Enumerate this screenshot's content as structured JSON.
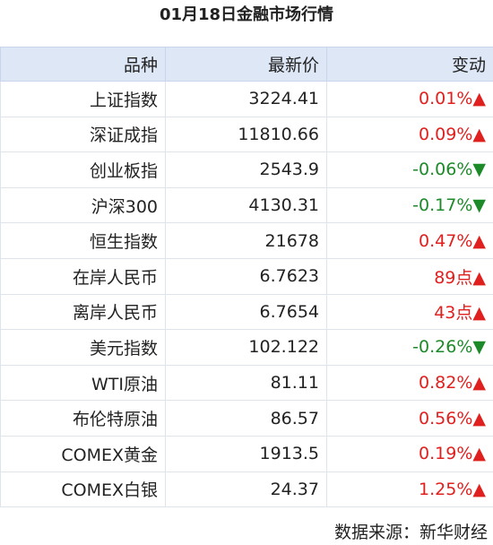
{
  "header": {
    "title": "01月18日金融市场行情"
  },
  "table": {
    "columns": [
      "品种",
      "最新价",
      "变动"
    ],
    "rows": [
      [
        "上证指数",
        "3224.41",
        "0.01%▲"
      ],
      [
        "深证成指",
        "11810.66",
        "0.09%▲"
      ],
      [
        "创业板指",
        "2543.9",
        "-0.06%▼"
      ],
      [
        "沪深300",
        "4130.31",
        "-0.17%▼"
      ],
      [
        "恒生指数",
        "21678",
        "0.47%▲"
      ],
      [
        "在岸人民币",
        "6.7623",
        "89点▲"
      ],
      [
        "离岸人民币",
        "6.7654",
        "43点▲"
      ],
      [
        "美元指数",
        "102.122",
        "-0.26%▼"
      ],
      [
        "WTI原油",
        "81.11",
        "0.82%▲"
      ],
      [
        "布伦特原油",
        "86.57",
        "0.56%▲"
      ],
      [
        "COMEX黄金",
        "1913.5",
        "0.19%▲"
      ],
      [
        "COMEX白银",
        "24.37",
        "1.25%▲"
      ]
    ]
  },
  "footer": {
    "source": "数据来源：新华财经"
  }
}
